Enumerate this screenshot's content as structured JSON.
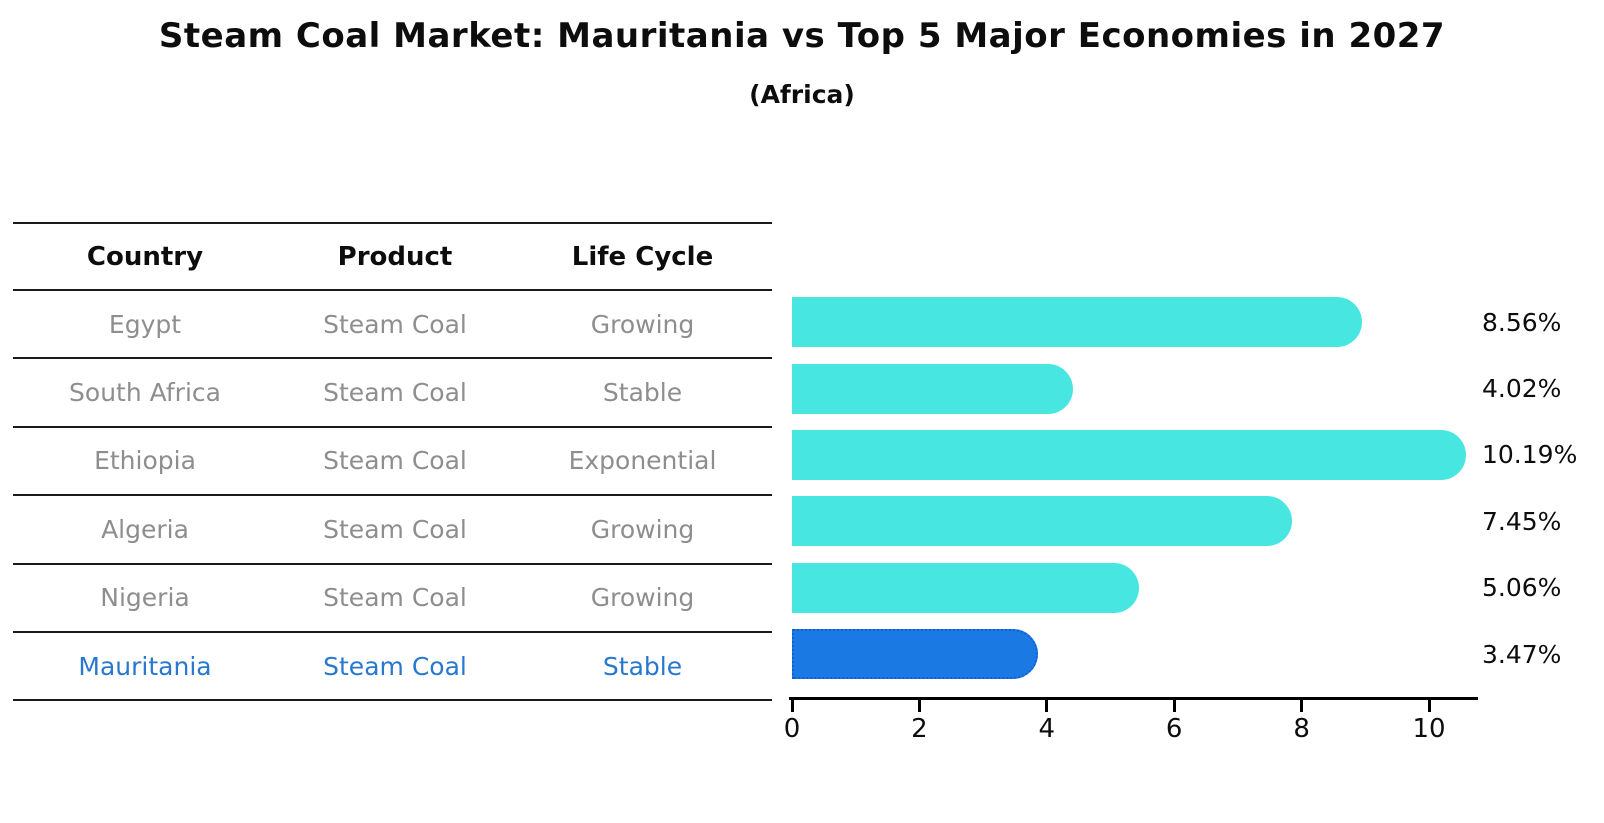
{
  "title": "Steam Coal Market: Mauritania vs Top 5 Major Economies in 2027",
  "subtitle": "(Africa)",
  "table": {
    "headers": [
      "Country",
      "Product",
      "Life Cycle"
    ],
    "rows": [
      {
        "country": "Egypt",
        "product": "Steam Coal",
        "life_cycle": "Growing",
        "highlight": false
      },
      {
        "country": "South Africa",
        "product": "Steam Coal",
        "life_cycle": "Stable",
        "highlight": false
      },
      {
        "country": "Ethiopia",
        "product": "Steam Coal",
        "life_cycle": "Exponential",
        "highlight": false
      },
      {
        "country": "Algeria",
        "product": "Steam Coal",
        "life_cycle": "Growing",
        "highlight": false
      },
      {
        "country": "Nigeria",
        "product": "Steam Coal",
        "life_cycle": "Growing",
        "highlight": false
      },
      {
        "country": "Mauritania",
        "product": "Steam Coal",
        "life_cycle": "Stable",
        "highlight": true
      }
    ]
  },
  "chart_data": {
    "type": "bar",
    "orientation": "horizontal",
    "title": "Steam Coal Market: Mauritania vs Top 5 Major Economies in 2027",
    "subtitle": "(Africa)",
    "categories": [
      "Egypt",
      "South Africa",
      "Ethiopia",
      "Algeria",
      "Nigeria",
      "Mauritania"
    ],
    "values": [
      8.56,
      4.02,
      10.19,
      7.45,
      5.06,
      3.47
    ],
    "value_labels": [
      "8.56%",
      "4.02%",
      "10.19%",
      "7.45%",
      "5.06%",
      "3.47%"
    ],
    "xlabel": "",
    "ylabel": "",
    "xticks": [
      0,
      2,
      4,
      6,
      8,
      10
    ],
    "xlim": [
      0,
      10.75
    ],
    "grid": false,
    "legend_position": "none",
    "bar_color": "#47e6e0",
    "highlight_index": 5,
    "highlight_color": "#1b79e4",
    "highlight_border_color": "#0e5fd8",
    "highlight_text_color": "#2878ce",
    "row_text_color": "#8e8e8e",
    "axis_color": "#000000"
  }
}
